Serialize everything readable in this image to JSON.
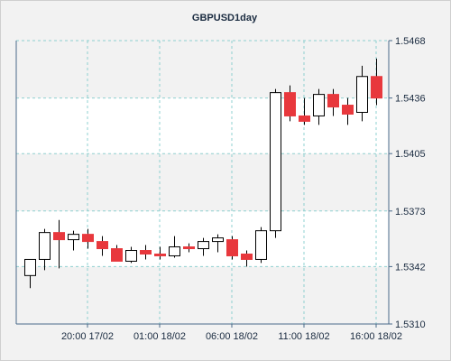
{
  "chart_data": {
    "type": "candlestick",
    "title": "GBPUSD1day",
    "ylim": [
      1.531,
      1.5468
    ],
    "y_ticks": [
      "1.5468",
      "1.5436",
      "1.5405",
      "1.5373",
      "1.5342",
      "1.5310"
    ],
    "x_ticks": [
      "20:00 17/02",
      "01:00 18/02",
      "06:00 18/02",
      "11:00 18/02",
      "16:00 18/02"
    ],
    "grid": true,
    "colors": {
      "up_body": "#ffffff",
      "down_body": "#e8383d",
      "wick": "#000000",
      "grid": "#8fd0d0",
      "band": "#ffffff",
      "background": "#f2f2f2",
      "axis": "#4a6a8a",
      "text": "#1a2b40"
    },
    "candles": [
      {
        "open": 1.5337,
        "high": 1.5346,
        "low": 1.533,
        "close": 1.5346
      },
      {
        "open": 1.5346,
        "high": 1.5363,
        "low": 1.534,
        "close": 1.5361
      },
      {
        "open": 1.5361,
        "high": 1.5368,
        "low": 1.5341,
        "close": 1.5357
      },
      {
        "open": 1.5357,
        "high": 1.5362,
        "low": 1.5351,
        "close": 1.536
      },
      {
        "open": 1.536,
        "high": 1.5363,
        "low": 1.5352,
        "close": 1.5356
      },
      {
        "open": 1.5356,
        "high": 1.5359,
        "low": 1.5348,
        "close": 1.5352
      },
      {
        "open": 1.5352,
        "high": 1.5354,
        "low": 1.5345,
        "close": 1.5345
      },
      {
        "open": 1.5345,
        "high": 1.5353,
        "low": 1.5344,
        "close": 1.5351
      },
      {
        "open": 1.5351,
        "high": 1.5354,
        "low": 1.5346,
        "close": 1.5349
      },
      {
        "open": 1.5349,
        "high": 1.5353,
        "low": 1.5346,
        "close": 1.5348
      },
      {
        "open": 1.5348,
        "high": 1.5359,
        "low": 1.5347,
        "close": 1.5353
      },
      {
        "open": 1.5353,
        "high": 1.5355,
        "low": 1.535,
        "close": 1.5352
      },
      {
        "open": 1.5352,
        "high": 1.5358,
        "low": 1.5348,
        "close": 1.5356
      },
      {
        "open": 1.5356,
        "high": 1.536,
        "low": 1.535,
        "close": 1.5358
      },
      {
        "open": 1.5357,
        "high": 1.5359,
        "low": 1.5346,
        "close": 1.5348
      },
      {
        "open": 1.5349,
        "high": 1.5351,
        "low": 1.5342,
        "close": 1.5346
      },
      {
        "open": 1.5346,
        "high": 1.5364,
        "low": 1.5344,
        "close": 1.5362
      },
      {
        "open": 1.5362,
        "high": 1.5441,
        "low": 1.5358,
        "close": 1.5439
      },
      {
        "open": 1.5439,
        "high": 1.5443,
        "low": 1.5423,
        "close": 1.5426
      },
      {
        "open": 1.5426,
        "high": 1.5436,
        "low": 1.5421,
        "close": 1.5423
      },
      {
        "open": 1.5426,
        "high": 1.5441,
        "low": 1.5421,
        "close": 1.5438
      },
      {
        "open": 1.5438,
        "high": 1.5441,
        "low": 1.5426,
        "close": 1.5431
      },
      {
        "open": 1.5432,
        "high": 1.5436,
        "low": 1.5421,
        "close": 1.5427
      },
      {
        "open": 1.5428,
        "high": 1.5454,
        "low": 1.5423,
        "close": 1.5448
      },
      {
        "open": 1.5448,
        "high": 1.5458,
        "low": 1.5432,
        "close": 1.5436
      }
    ]
  }
}
